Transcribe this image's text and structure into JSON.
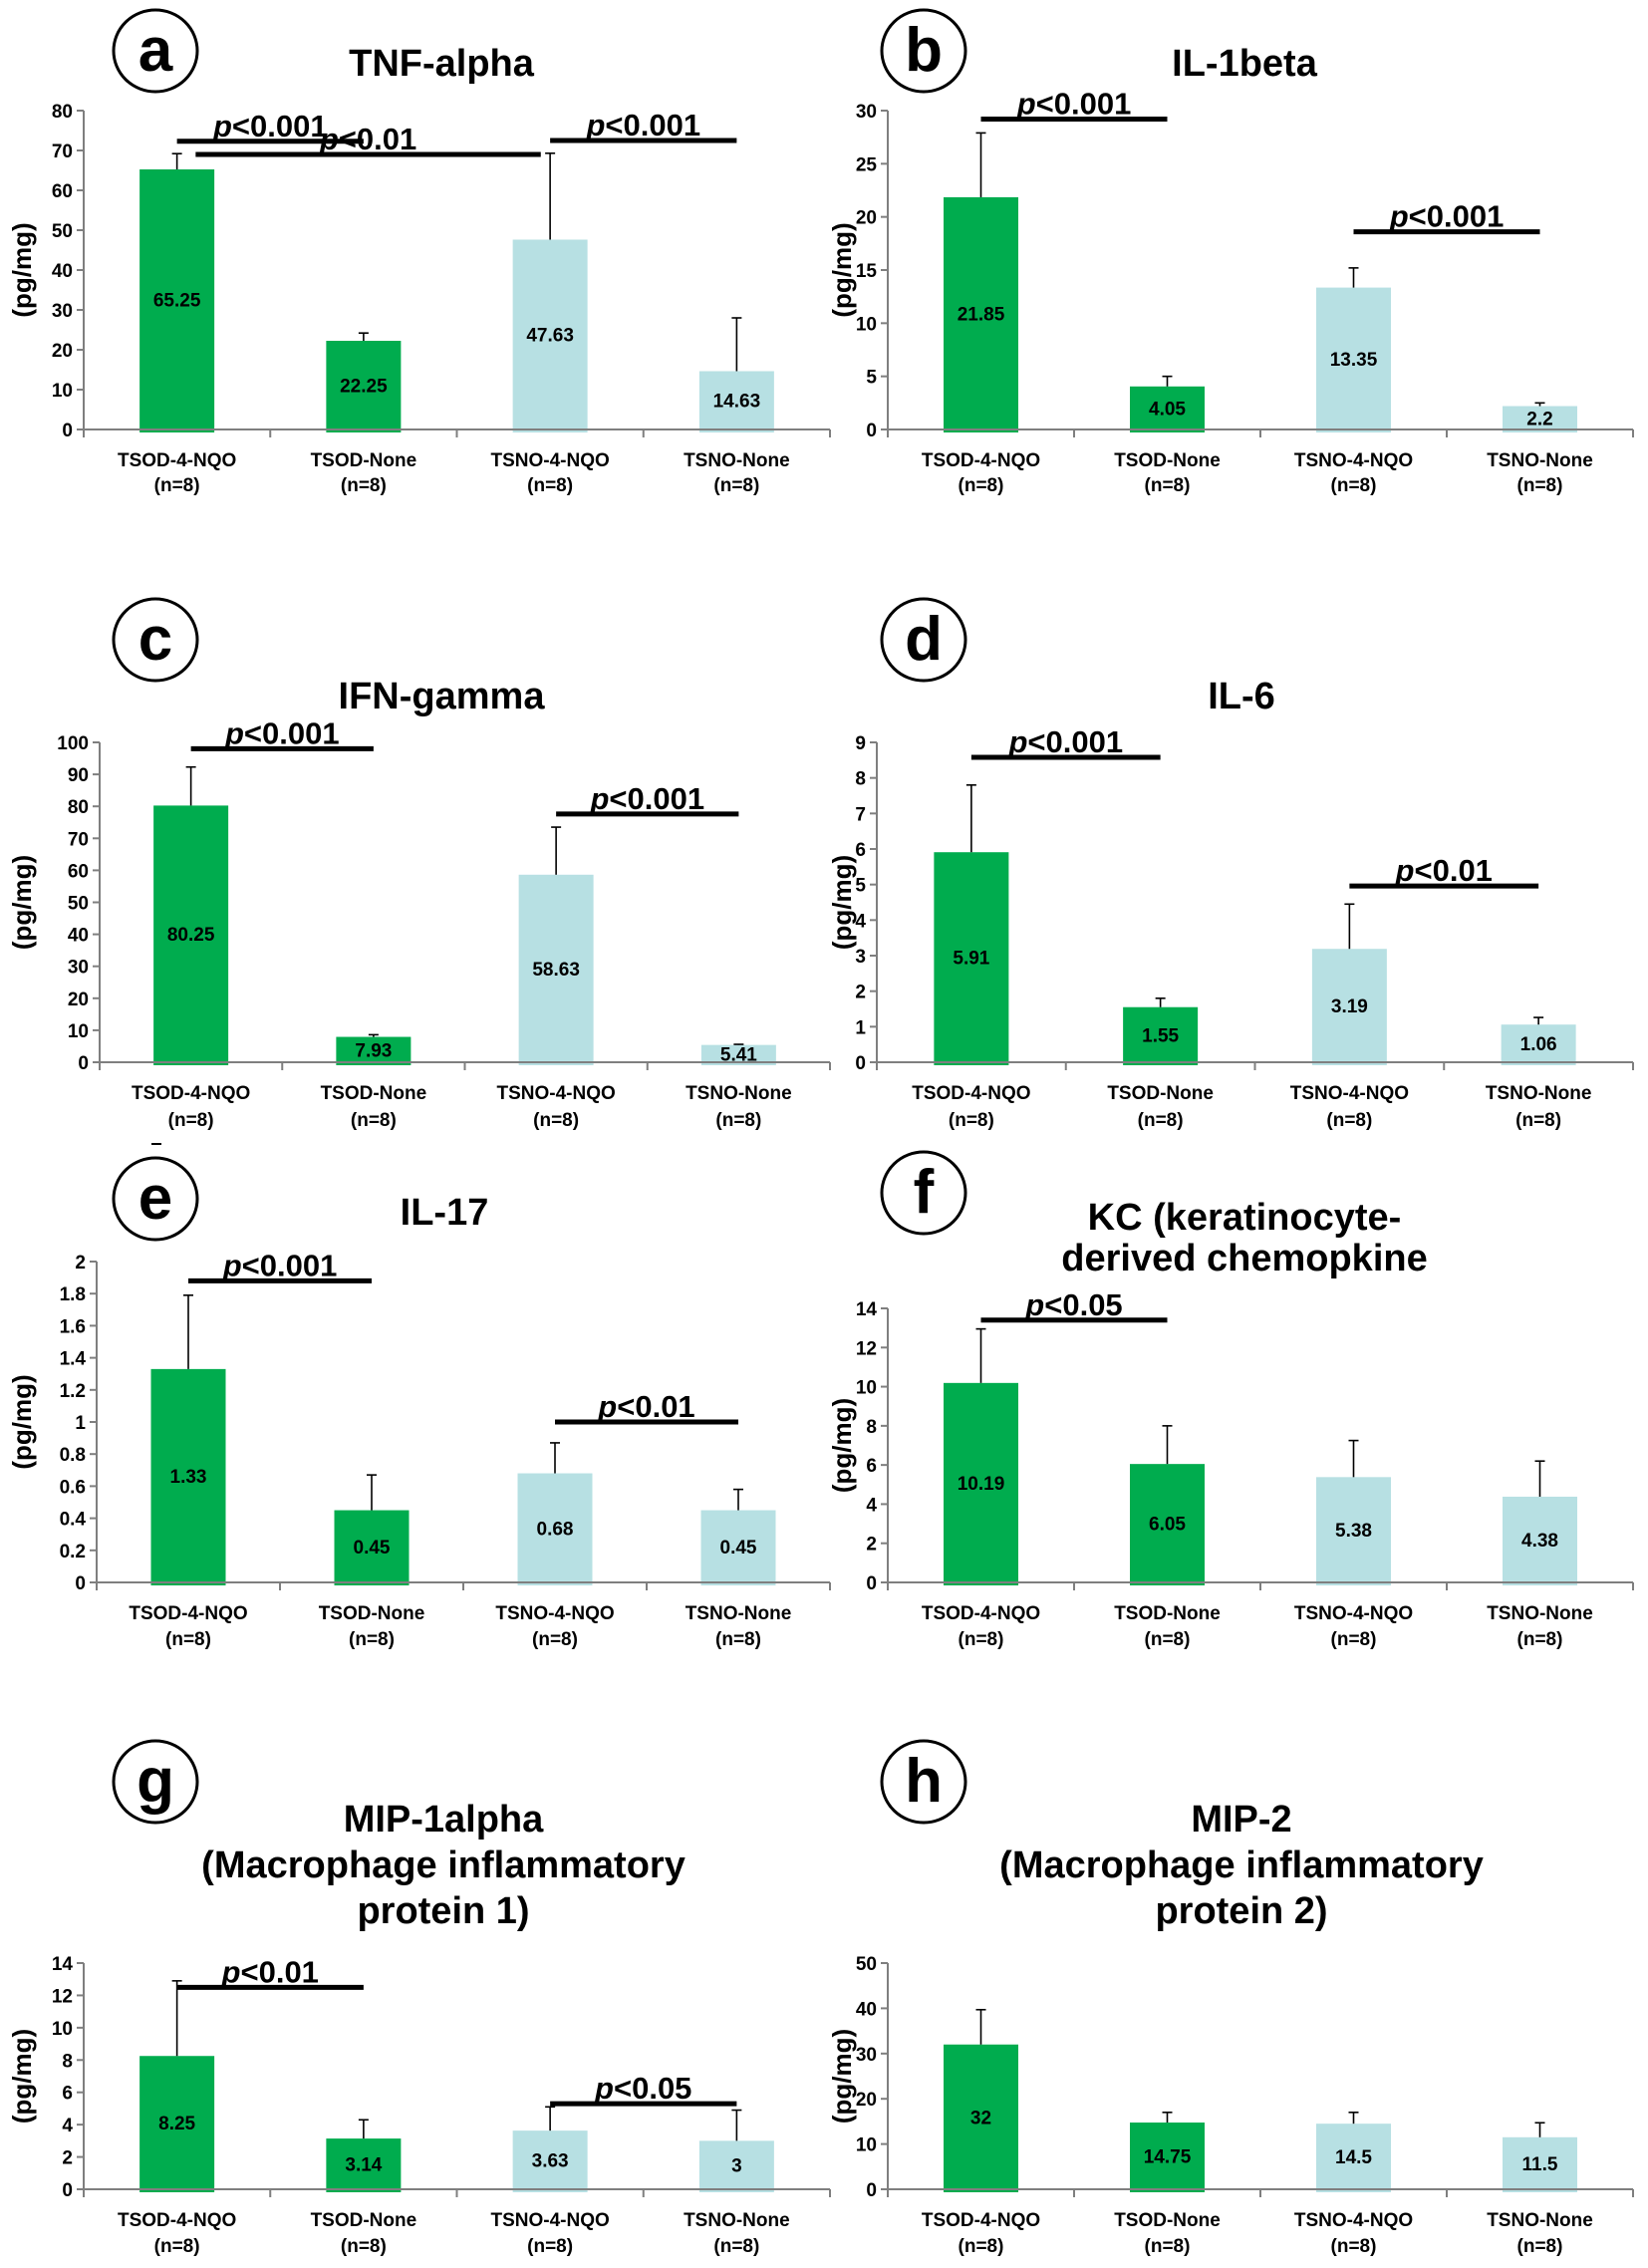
{
  "figure": {
    "colors": {
      "tsod": "#00AC4E",
      "tsno": "#B7E0E3",
      "axis": "#7f7f7f",
      "text": "#000000"
    }
  },
  "chart_data": [
    {
      "panel": "a",
      "type": "bar",
      "title": [
        "TNF-alpha"
      ],
      "ylabel": "(pg/mg)",
      "xlabel": "",
      "ylim": [
        0,
        80
      ],
      "yticks": [
        0,
        10,
        20,
        30,
        40,
        50,
        60,
        70,
        80
      ],
      "categories": [
        "TSOD-4-NQO",
        "TSOD-None",
        "TSNO-4-NQO",
        "TSNO-None"
      ],
      "category_sublabels": [
        "(n=8)",
        "(n=8)",
        "(n=8)",
        "(n=8)"
      ],
      "values": [
        65.25,
        22.25,
        47.63,
        14.63
      ],
      "data_labels": [
        "65.25",
        "22.25",
        "47.63",
        "14.63"
      ],
      "error_upper": [
        69.2,
        24.2,
        69.3,
        28.0
      ],
      "bar_groups": [
        "tsod",
        "tsod",
        "tsno",
        "tsno"
      ],
      "significance": [
        {
          "from": 0,
          "to": 1,
          "y": 72.3,
          "label": "<0.001"
        },
        {
          "from": 0.1,
          "to": 1.95,
          "y": 69.0,
          "label": "<0.01"
        },
        {
          "from": 2,
          "to": 3,
          "y": 72.5,
          "label": "<0.001"
        }
      ]
    },
    {
      "panel": "b",
      "type": "bar",
      "title": [
        "IL-1beta"
      ],
      "ylabel": "(pg/mg)",
      "xlabel": "",
      "ylim": [
        0,
        30
      ],
      "yticks": [
        0,
        5,
        10,
        15,
        20,
        25,
        30
      ],
      "categories": [
        "TSOD-4-NQO",
        "TSOD-None",
        "TSNO-4-NQO",
        "TSNO-None"
      ],
      "category_sublabels": [
        "(n=8)",
        "(n=8)",
        "(n=8)",
        "(n=8)"
      ],
      "values": [
        21.85,
        4.05,
        13.35,
        2.2
      ],
      "data_labels": [
        "21.85",
        "4.05",
        "13.35",
        "2.2"
      ],
      "error_upper": [
        27.9,
        5.0,
        15.2,
        2.5
      ],
      "bar_groups": [
        "tsod",
        "tsod",
        "tsno",
        "tsno"
      ],
      "significance": [
        {
          "from": 0,
          "to": 1,
          "y": 29.2,
          "label": "<0.001"
        },
        {
          "from": 2,
          "to": 3,
          "y": 18.6,
          "label": "<0.001"
        }
      ]
    },
    {
      "panel": "c",
      "type": "bar",
      "title": [
        "IFN-gamma"
      ],
      "ylabel": "(pg/mg)",
      "xlabel": "",
      "ylim": [
        0,
        100
      ],
      "yticks": [
        0,
        10,
        20,
        30,
        40,
        50,
        60,
        70,
        80,
        90,
        100
      ],
      "categories": [
        "TSOD-4-NQO",
        "TSOD-None",
        "TSNO-4-NQO",
        "TSNO-None"
      ],
      "category_sublabels": [
        "(n=8)",
        "(n=8)",
        "(n=8)",
        "(n=8)"
      ],
      "values": [
        80.25,
        7.93,
        58.63,
        5.41
      ],
      "data_labels": [
        "80.25",
        "7.93",
        "58.63",
        "5.41"
      ],
      "error_upper": [
        92.3,
        8.6,
        73.5,
        5.6
      ],
      "bar_groups": [
        "tsod",
        "tsod",
        "tsno",
        "tsno"
      ],
      "significance": [
        {
          "from": 0,
          "to": 1,
          "y": 98.0,
          "label": "<0.001"
        },
        {
          "from": 2,
          "to": 3,
          "y": 77.6,
          "label": "<0.001"
        }
      ]
    },
    {
      "panel": "d",
      "type": "bar",
      "title": [
        "IL-6"
      ],
      "ylabel": "(pg/mg)",
      "xlabel": "",
      "ylim": [
        0,
        9
      ],
      "yticks": [
        0,
        1,
        2,
        3,
        4,
        5,
        6,
        7,
        8,
        9
      ],
      "categories": [
        "TSOD-4-NQO",
        "TSOD-None",
        "TSNO-4-NQO",
        "TSNO-None"
      ],
      "category_sublabels": [
        "(n=8)",
        "(n=8)",
        "(n=8)",
        "(n=8)"
      ],
      "values": [
        5.91,
        1.55,
        3.19,
        1.06
      ],
      "data_labels": [
        "5.91",
        "1.55",
        "3.19",
        "1.06"
      ],
      "error_upper": [
        7.8,
        1.8,
        4.45,
        1.26
      ],
      "bar_groups": [
        "tsod",
        "tsod",
        "tsno",
        "tsno"
      ],
      "significance": [
        {
          "from": 0,
          "to": 1,
          "y": 8.58,
          "label": "<0.001"
        },
        {
          "from": 2,
          "to": 3,
          "y": 4.96,
          "label": "<0.01"
        }
      ]
    },
    {
      "panel": "e",
      "type": "bar",
      "title": [
        "IL-17"
      ],
      "ylabel": "(pg/mg)",
      "xlabel": "",
      "ylim": [
        0,
        2
      ],
      "yticks": [
        0,
        0.2,
        0.4,
        0.6,
        0.8,
        1,
        1.2,
        1.4,
        1.6,
        1.8,
        2
      ],
      "categories": [
        "TSOD-4-NQO",
        "TSOD-None",
        "TSNO-4-NQO",
        "TSNO-None"
      ],
      "category_sublabels": [
        "(n=8)",
        "(n=8)",
        "(n=8)",
        "(n=8)"
      ],
      "values": [
        1.33,
        0.45,
        0.68,
        0.45
      ],
      "data_labels": [
        "1.33",
        "0.45",
        "0.68",
        "0.45"
      ],
      "error_upper": [
        1.79,
        0.67,
        0.87,
        0.58
      ],
      "bar_groups": [
        "tsod",
        "tsod",
        "tsno",
        "tsno"
      ],
      "significance": [
        {
          "from": 0,
          "to": 1,
          "y": 1.88,
          "label": "<0.001"
        },
        {
          "from": 2,
          "to": 3,
          "y": 1.0,
          "label": "<0.01"
        }
      ]
    },
    {
      "panel": "f",
      "type": "bar",
      "title": [
        "KC (keratinocyte-",
        "derived chemopkine"
      ],
      "ylabel": "(pg/mg)",
      "xlabel": "",
      "ylim": [
        0,
        14
      ],
      "yticks": [
        0,
        2,
        4,
        6,
        8,
        10,
        12,
        14
      ],
      "categories": [
        "TSOD-4-NQO",
        "TSOD-None",
        "TSNO-4-NQO",
        "TSNO-None"
      ],
      "category_sublabels": [
        "(n=8)",
        "(n=8)",
        "(n=8)",
        "(n=8)"
      ],
      "values": [
        10.19,
        6.05,
        5.38,
        4.38
      ],
      "data_labels": [
        "10.19",
        "6.05",
        "5.38",
        "4.38"
      ],
      "error_upper": [
        12.95,
        8.0,
        7.25,
        6.2
      ],
      "bar_groups": [
        "tsod",
        "tsod",
        "tsno",
        "tsno"
      ],
      "significance": [
        {
          "from": 0,
          "to": 1,
          "y": 13.4,
          "label": "<0.05"
        }
      ]
    },
    {
      "panel": "g",
      "type": "bar",
      "title": [
        "MIP-1alpha",
        "(Macrophage inflammatory",
        "protein 1)"
      ],
      "ylabel": "(pg/mg)",
      "xlabel": "",
      "ylim": [
        0,
        14
      ],
      "yticks": [
        0,
        2,
        4,
        6,
        8,
        10,
        12,
        14
      ],
      "categories": [
        "TSOD-4-NQO",
        "TSOD-None",
        "TSNO-4-NQO",
        "TSNO-None"
      ],
      "category_sublabels": [
        "(n=8)",
        "(n=8)",
        "(n=8)",
        "(n=8)"
      ],
      "values": [
        8.25,
        3.14,
        3.63,
        3
      ],
      "data_labels": [
        "8.25",
        "3.14",
        "3.63",
        "3"
      ],
      "error_upper": [
        12.9,
        4.3,
        5.1,
        4.9
      ],
      "bar_groups": [
        "tsod",
        "tsod",
        "tsno",
        "tsno"
      ],
      "significance": [
        {
          "from": 0,
          "to": 1,
          "y": 12.5,
          "label": "<0.01"
        },
        {
          "from": 2,
          "to": 3,
          "y": 5.3,
          "label": "<0.05"
        }
      ]
    },
    {
      "panel": "h",
      "type": "bar",
      "title": [
        "MIP-2",
        "(Macrophage inflammatory",
        "protein 2)"
      ],
      "ylabel": "(pg/mg)",
      "xlabel": "",
      "ylim": [
        0,
        50
      ],
      "yticks": [
        0,
        10,
        20,
        30,
        40,
        50
      ],
      "categories": [
        "TSOD-4-NQO",
        "TSOD-None",
        "TSNO-4-NQO",
        "TSNO-None"
      ],
      "category_sublabels": [
        "(n=8)",
        "(n=8)",
        "(n=8)",
        "(n=8)"
      ],
      "values": [
        32,
        14.75,
        14.5,
        11.5
      ],
      "data_labels": [
        "32",
        "14.75",
        "14.5",
        "11.5"
      ],
      "error_upper": [
        39.7,
        17.0,
        17.0,
        14.7
      ],
      "bar_groups": [
        "tsod",
        "tsod",
        "tsno",
        "tsno"
      ],
      "significance": []
    }
  ]
}
